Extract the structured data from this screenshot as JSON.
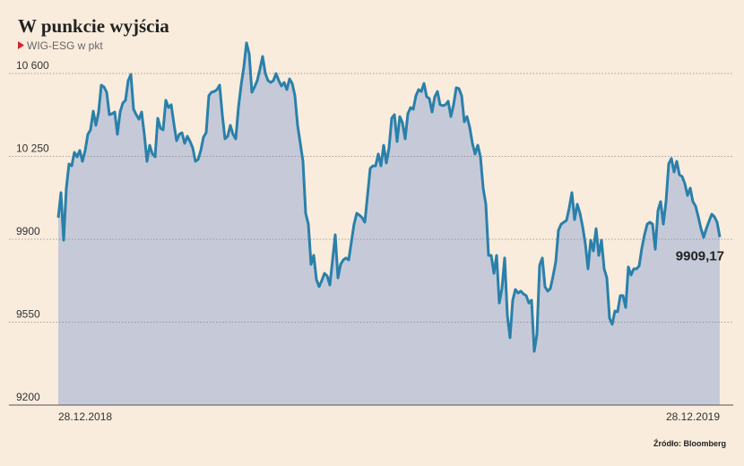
{
  "chart_data": {
    "type": "area-line",
    "title": "W punkcie wyjścia",
    "subtitle": "WIG-ESG w pkt",
    "source": "Źródło: Bloomberg",
    "color": "#2a80aa",
    "fill_color": "#c6cad8",
    "grid": true,
    "ylim": [
      9200,
      10740
    ],
    "yticks": [
      9200,
      {
        "value": 9550,
        "label": "9550"
      },
      9900,
      {
        "value": 10250,
        "label": "10 250"
      },
      {
        "value": 10600,
        "label": "10 600"
      }
    ],
    "categories": [
      "28.12.2018",
      null,
      null,
      null,
      null,
      null,
      null,
      null,
      null,
      null,
      null,
      null,
      null,
      null,
      null,
      null,
      null,
      null,
      null,
      null,
      null,
      null,
      null,
      null,
      null,
      null,
      null,
      null,
      null,
      null,
      null,
      null,
      null,
      null,
      null,
      null,
      null,
      null,
      null,
      null,
      null,
      null,
      null,
      null,
      null,
      null,
      null,
      null,
      null,
      null,
      null,
      null,
      null,
      null,
      null,
      null,
      null,
      null,
      null,
      null,
      null,
      null,
      null,
      null,
      null,
      null,
      null,
      null,
      null,
      null,
      null,
      null,
      null,
      null,
      null,
      null,
      null,
      null,
      null,
      null,
      null,
      null,
      null,
      null,
      null,
      null,
      null,
      null,
      null,
      null,
      null,
      null,
      null,
      null,
      null,
      null,
      null,
      null,
      null,
      null,
      null,
      null,
      null,
      null,
      null,
      null,
      null,
      null,
      null,
      null,
      null,
      null,
      null,
      null,
      null,
      null,
      null,
      null,
      null,
      null,
      null,
      null,
      null,
      null,
      null,
      null,
      null,
      null,
      null,
      null,
      null,
      null,
      null,
      null,
      null,
      null,
      null,
      null,
      null,
      null,
      null,
      null,
      null,
      null,
      null,
      null,
      null,
      null,
      null,
      null,
      null,
      null,
      null,
      null,
      null,
      null,
      null,
      null,
      null,
      null,
      null,
      null,
      null,
      null,
      null,
      null,
      null,
      null,
      null,
      null,
      null,
      null,
      null,
      null,
      null,
      null,
      null,
      null,
      null,
      null,
      null,
      null,
      null,
      null,
      null,
      null,
      null,
      null,
      null,
      null,
      null,
      null,
      null,
      null,
      null,
      null,
      null,
      null,
      null,
      null,
      null,
      null,
      null,
      null,
      null,
      null,
      null,
      null,
      null,
      null,
      null,
      null,
      null,
      null,
      null,
      null,
      null,
      null,
      null,
      null,
      null,
      null,
      null,
      null,
      null,
      null,
      null,
      null,
      null,
      null,
      null,
      null,
      null,
      null,
      null,
      null,
      null,
      null,
      null,
      null,
      null,
      null,
      null,
      null,
      null,
      null,
      "28.12.2019"
    ],
    "values": [
      9991,
      10097,
      9896,
      10116,
      10218,
      10210,
      10267,
      10248,
      10275,
      10229,
      10275,
      10343,
      10362,
      10441,
      10381,
      10437,
      10551,
      10543,
      10521,
      10426,
      10430,
      10437,
      10343,
      10437,
      10475,
      10487,
      10570,
      10596,
      10449,
      10426,
      10407,
      10437,
      10343,
      10229,
      10297,
      10260,
      10248,
      10411,
      10369,
      10362,
      10487,
      10456,
      10468,
      10388,
      10316,
      10343,
      10350,
      10305,
      10335,
      10313,
      10286,
      10229,
      10237,
      10275,
      10331,
      10350,
      10506,
      10521,
      10524,
      10532,
      10551,
      10426,
      10324,
      10335,
      10381,
      10343,
      10324,
      10456,
      10551,
      10627,
      10729,
      10683,
      10521,
      10543,
      10570,
      10619,
      10672,
      10600,
      10570,
      10562,
      10570,
      10600,
      10570,
      10547,
      10562,
      10532,
      10577,
      10558,
      10506,
      10381,
      10305,
      10229,
      10010,
      9964,
      9794,
      9832,
      9730,
      9700,
      9726,
      9756,
      9745,
      9707,
      9813,
      9919,
      9737,
      9794,
      9813,
      9821,
      9813,
      9889,
      9964,
      10010,
      10002,
      9991,
      9972,
      10085,
      10199,
      10210,
      10210,
      10260,
      10210,
      10297,
      10222,
      10286,
      10411,
      10426,
      10313,
      10418,
      10392,
      10324,
      10430,
      10456,
      10449,
      10506,
      10532,
      10524,
      10558,
      10502,
      10494,
      10437,
      10502,
      10524,
      10468,
      10464,
      10468,
      10483,
      10418,
      10468,
      10540,
      10536,
      10506,
      10396,
      10418,
      10373,
      10305,
      10260,
      10297,
      10248,
      10116,
      10048,
      9832,
      9832,
      9756,
      9832,
      9631,
      9692,
      9821,
      9578,
      9484,
      9643,
      9688,
      9673,
      9681,
      9669,
      9662,
      9631,
      9643,
      9427,
      9499,
      9790,
      9821,
      9700,
      9681,
      9692,
      9745,
      9805,
      9938,
      9964,
      9972,
      9980,
      10032,
      10097,
      9983,
      10048,
      10010,
      9953,
      9881,
      9775,
      9896,
      9851,
      9945,
      9832,
      9896,
      9775,
      9737,
      9567,
      9541,
      9597,
      9594,
      9662,
      9662,
      9612,
      9783,
      9749,
      9775,
      9775,
      9787,
      9862,
      9919,
      9964,
      9972,
      9964,
      9858,
      10021,
      10059,
      9964,
      10059,
      10218,
      10241,
      10184,
      10229,
      10172,
      10165,
      10135,
      10085,
      10116,
      10059,
      10040,
      9995,
      9945,
      9908,
      9945,
      9976,
      10006,
      9995,
      9972,
      9909.17
    ],
    "value_labels": [
      null,
      null,
      null,
      null,
      null,
      null,
      null,
      null,
      null,
      null,
      null,
      null,
      null,
      null,
      null,
      null,
      null,
      null,
      null,
      null,
      null,
      null,
      null,
      null,
      null,
      null,
      null,
      null,
      null,
      null,
      null,
      null,
      null,
      null,
      null,
      null,
      null,
      null,
      null,
      null,
      null,
      null,
      null,
      null,
      null,
      null,
      null,
      null,
      null,
      null,
      null,
      null,
      null,
      null,
      null,
      null,
      null,
      null,
      null,
      null,
      null,
      null,
      null,
      null,
      null,
      null,
      null,
      null,
      null,
      null,
      null,
      null,
      null,
      null,
      null,
      null,
      null,
      null,
      null,
      null,
      null,
      null,
      null,
      null,
      null,
      null,
      null,
      null,
      null,
      null,
      null,
      null,
      null,
      null,
      null,
      null,
      null,
      null,
      null,
      null,
      null,
      null,
      null,
      null,
      null,
      null,
      null,
      null,
      null,
      null,
      null,
      null,
      null,
      null,
      null,
      null,
      null,
      null,
      null,
      null,
      null,
      null,
      null,
      null,
      null,
      null,
      null,
      null,
      null,
      null,
      null,
      null,
      null,
      null,
      null,
      null,
      null,
      null,
      null,
      null,
      null,
      null,
      null,
      null,
      null,
      null,
      null,
      null,
      null,
      null,
      null,
      null,
      null,
      null,
      null,
      null,
      null,
      null,
      null,
      null,
      null,
      null,
      null,
      null,
      null,
      null,
      null,
      null,
      null,
      null,
      null,
      null,
      null,
      null,
      null,
      null,
      null,
      null,
      null,
      null,
      null,
      null,
      null,
      null,
      null,
      null,
      null,
      null,
      null,
      null,
      null,
      null,
      null,
      null,
      null,
      null,
      null,
      null,
      null,
      null,
      null,
      null,
      null,
      null,
      null,
      null,
      null,
      null,
      null,
      null,
      null,
      null,
      null,
      null,
      null,
      null,
      null,
      null,
      null,
      null,
      null,
      null,
      null,
      null,
      null,
      null,
      null,
      null,
      null,
      null,
      null,
      null,
      null,
      null,
      null,
      null,
      null,
      null,
      null,
      null,
      null,
      null,
      null,
      null,
      null,
      null,
      "9909,17"
    ]
  }
}
